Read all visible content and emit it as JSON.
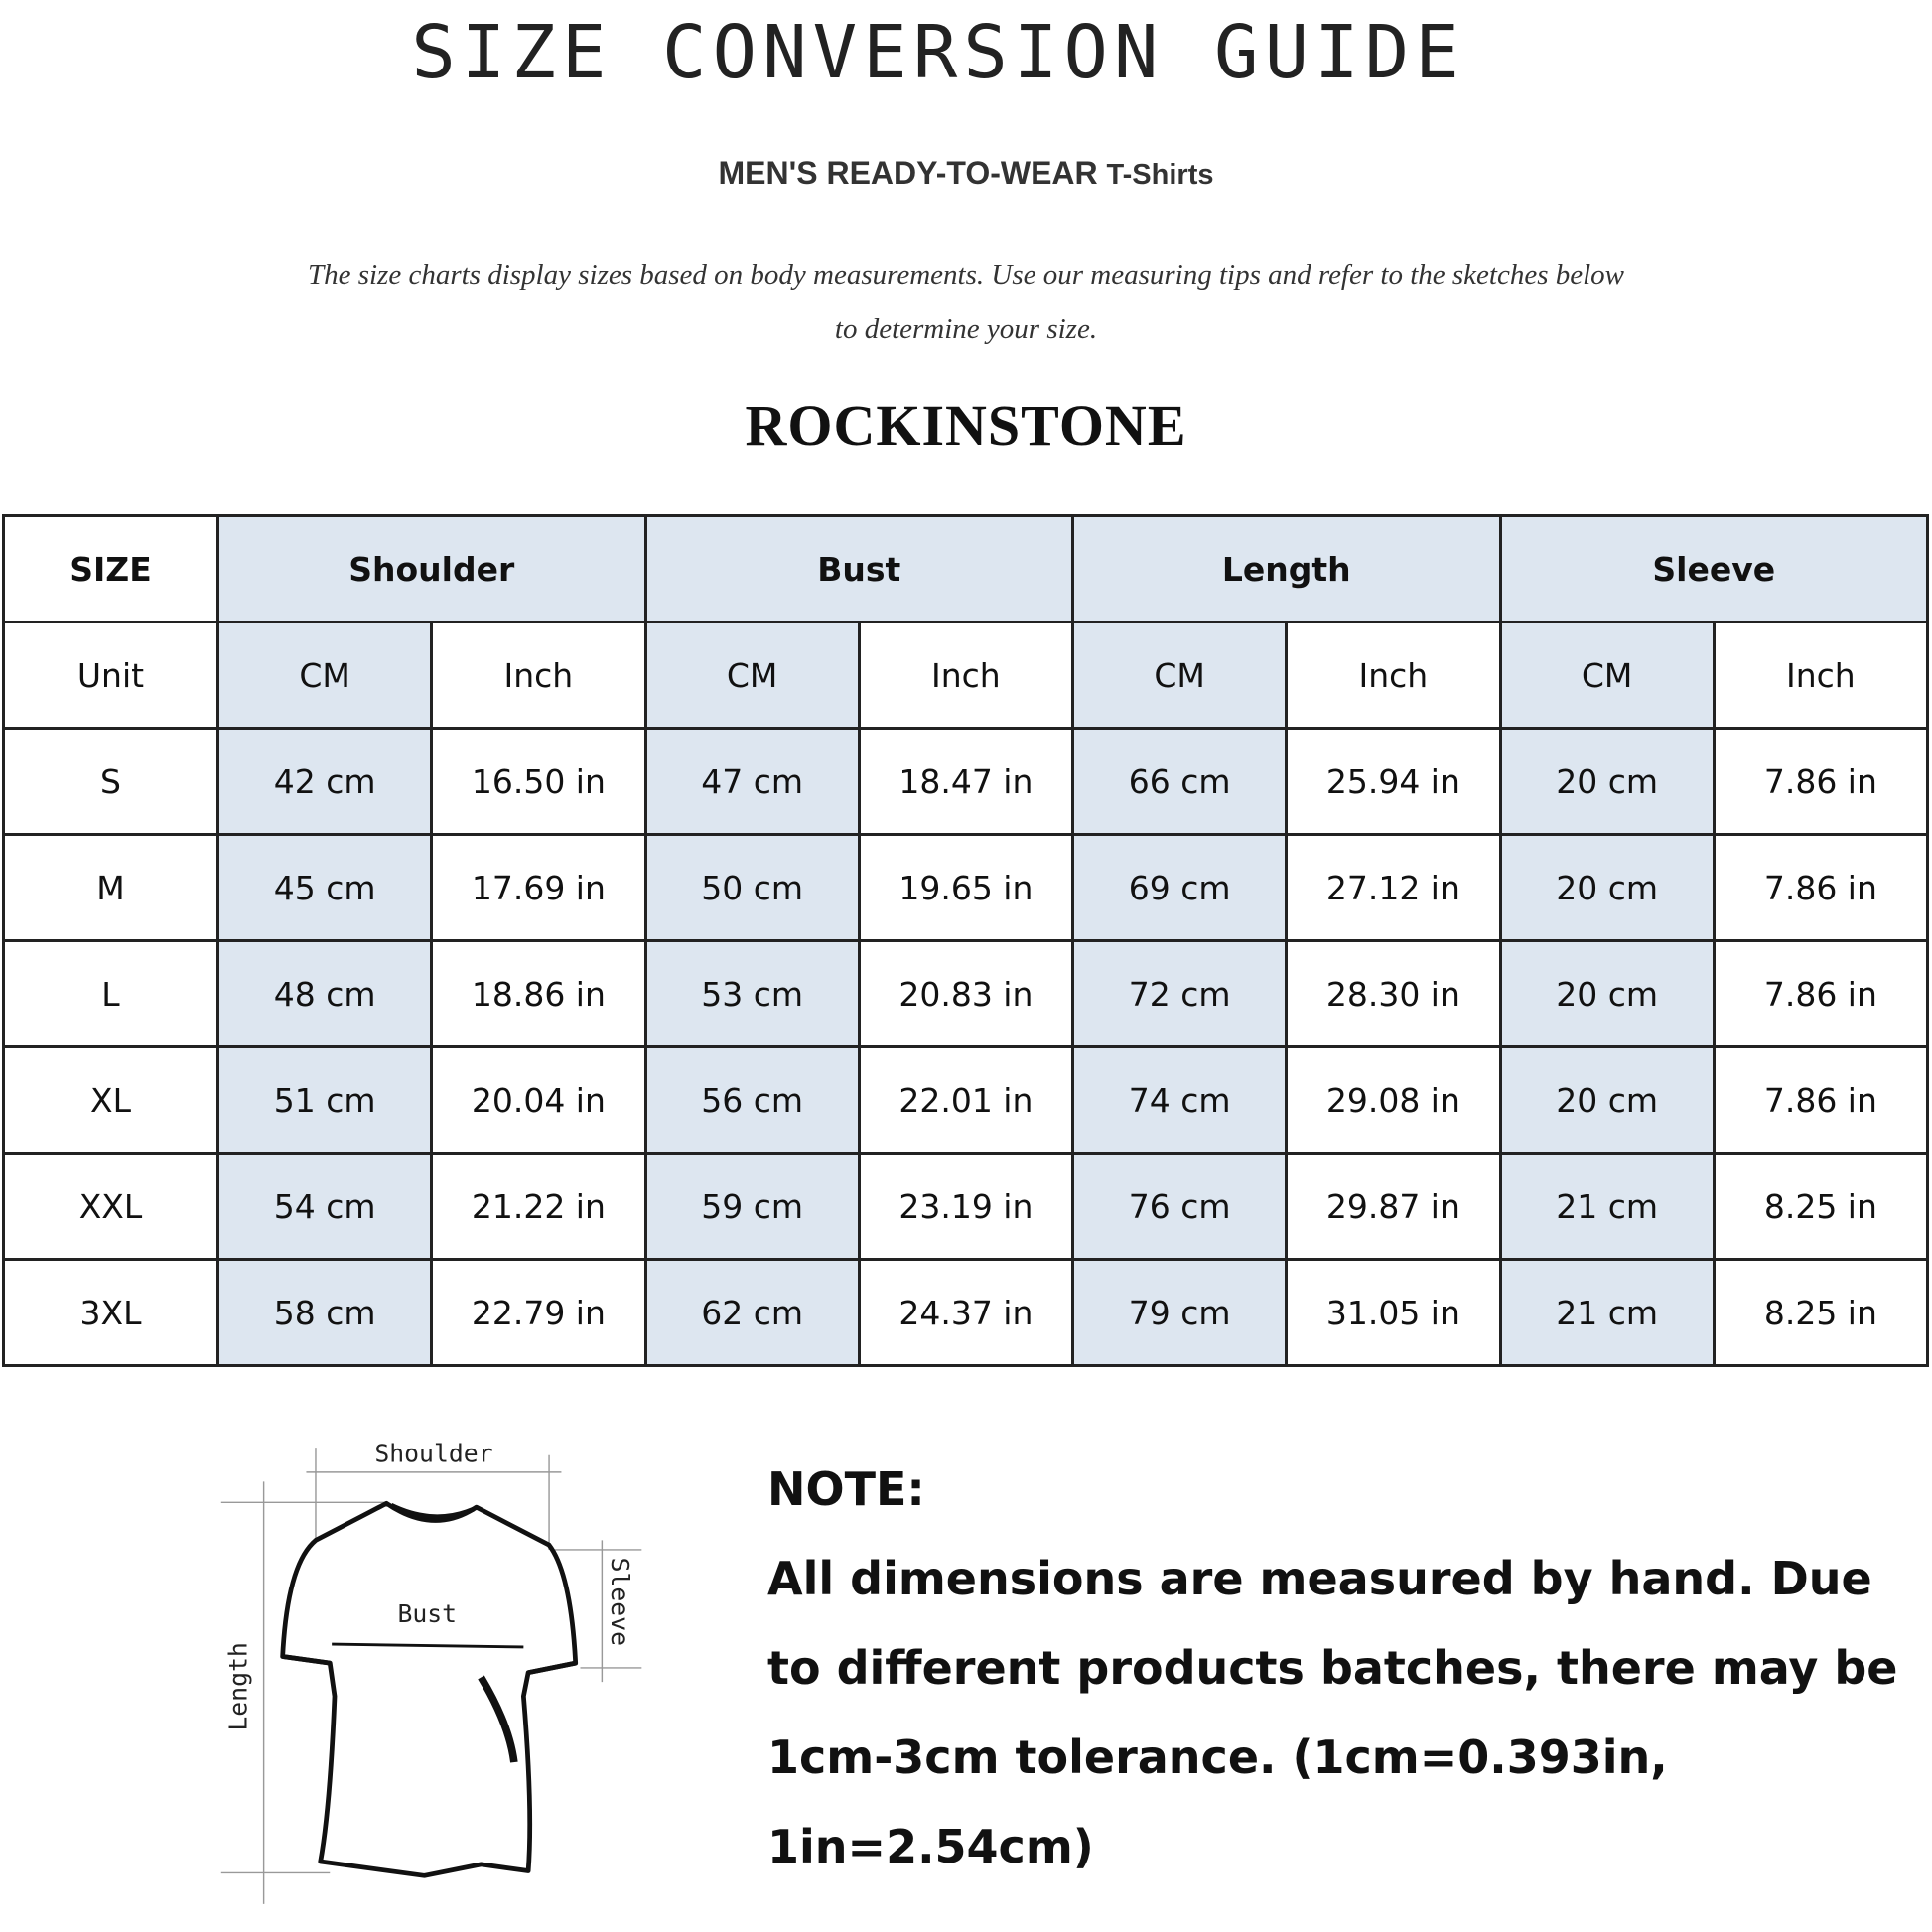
{
  "header": {
    "title": "SIZE CONVERSION GUIDE",
    "subtitle_main": "MEN'S READY-TO-WEAR",
    "subtitle_product": "T-Shirts",
    "description": "The size charts display sizes based on body measurements. Use our measuring tips and refer to the sketches below to determine your size.",
    "watermark": "ROCKINSTONE",
    "brand": "ROCKINSTONE"
  },
  "table": {
    "size_header": "SIZE",
    "groups": [
      "Shoulder",
      "Bust",
      "Length",
      "Sleeve"
    ],
    "unit_label": "Unit",
    "units": [
      "CM",
      "Inch",
      "CM",
      "Inch",
      "CM",
      "Inch",
      "CM",
      "Inch"
    ],
    "rows": [
      {
        "size": "S",
        "values": [
          "42 cm",
          "16.50 in",
          "47 cm",
          "18.47 in",
          "66 cm",
          "25.94 in",
          "20 cm",
          "7.86 in"
        ]
      },
      {
        "size": "M",
        "values": [
          "45 cm",
          "17.69 in",
          "50 cm",
          "19.65 in",
          "69 cm",
          "27.12 in",
          "20 cm",
          "7.86 in"
        ]
      },
      {
        "size": "L",
        "values": [
          "48 cm",
          "18.86 in",
          "53 cm",
          "20.83 in",
          "72 cm",
          "28.30 in",
          "20 cm",
          "7.86 in"
        ]
      },
      {
        "size": "XL",
        "values": [
          "51 cm",
          "20.04 in",
          "56 cm",
          "22.01 in",
          "74 cm",
          "29.08 in",
          "20 cm",
          "7.86 in"
        ]
      },
      {
        "size": "XXL",
        "values": [
          "54 cm",
          "21.22 in",
          "59 cm",
          "23.19 in",
          "76 cm",
          "29.87 in",
          "21 cm",
          "8.25 in"
        ]
      },
      {
        "size": "3XL",
        "values": [
          "58 cm",
          "22.79 in",
          "62 cm",
          "24.37 in",
          "79 cm",
          "31.05 in",
          "21 cm",
          "8.25 in"
        ]
      }
    ],
    "highlight_color": "#dde6f0"
  },
  "sketch": {
    "shoulder": "Shoulder",
    "bust": "Bust",
    "sleeve": "Sleeve",
    "length": "Length"
  },
  "note": {
    "heading": "NOTE:",
    "text": "All dimensions are measured by hand. Due to different products batches, there may be 1cm-3cm tolerance. (1cm=0.393in, 1in=2.54cm)"
  }
}
